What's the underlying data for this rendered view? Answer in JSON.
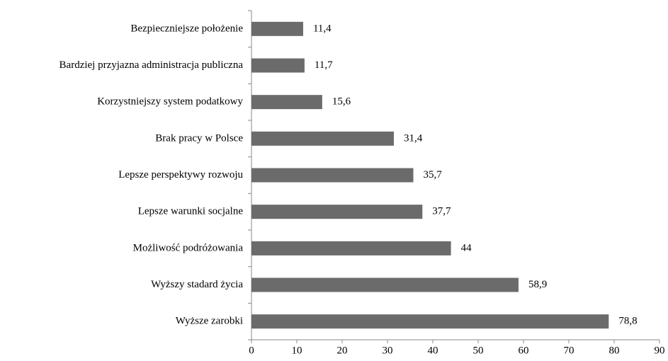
{
  "chart_data": {
    "type": "barh",
    "categories": [
      "Bezpieczniejsze położenie",
      "Bardziej przyjazna administracja publiczna",
      "Korzystniejszy system podatkowy",
      "Brak pracy w Polsce",
      "Lepsze perspektywy rozwoju",
      "Lepsze warunki socjalne",
      "Możliwość podróżowania",
      "Wyższy stadard życia",
      "Wyższe zarobki"
    ],
    "values": [
      11.4,
      11.7,
      15.6,
      31.4,
      35.7,
      37.7,
      44,
      58.9,
      78.8
    ],
    "value_labels": [
      "11,4",
      "11,7",
      "15,6",
      "31,4",
      "35,7",
      "37,7",
      "44",
      "58,9",
      "78,8"
    ],
    "color": "#6b6b6b",
    "xlim": [
      0,
      90
    ],
    "xticks": [
      0,
      10,
      20,
      30,
      40,
      50,
      60,
      70,
      80,
      90
    ],
    "grid": false
  }
}
